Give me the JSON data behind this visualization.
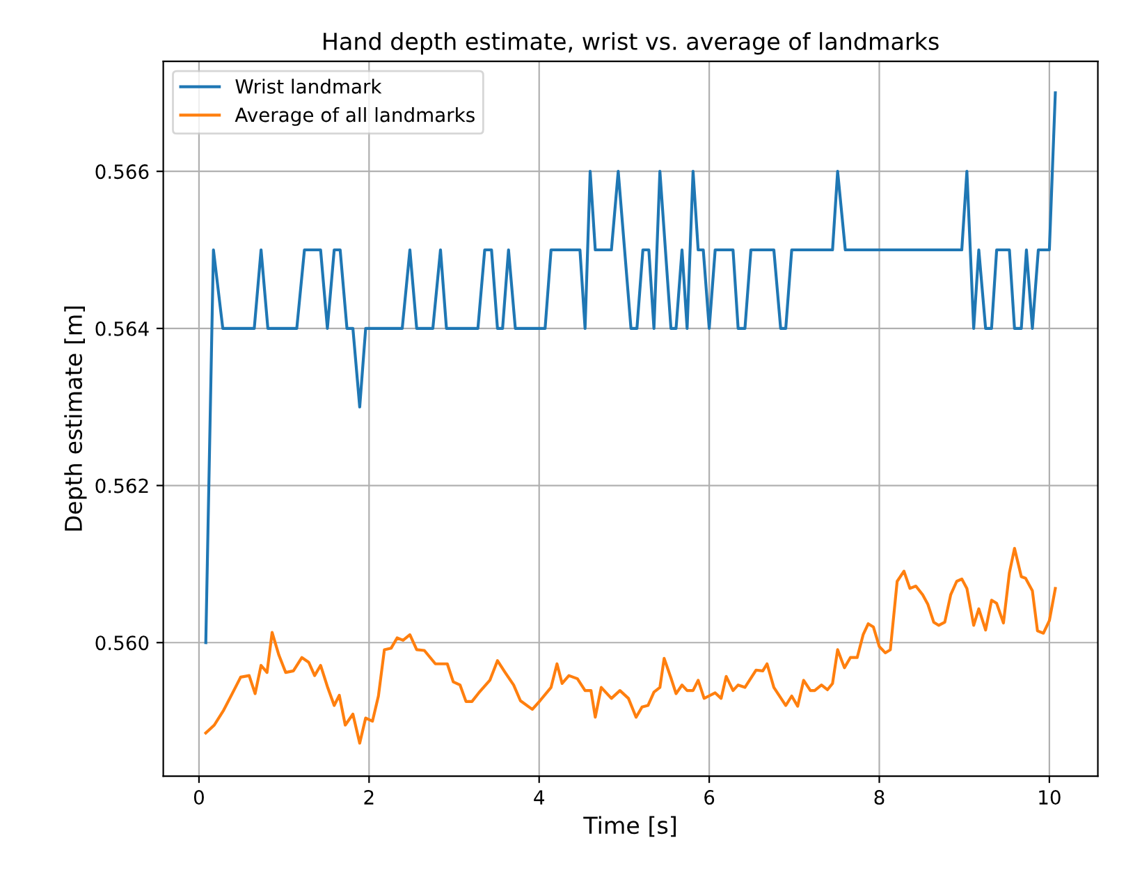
{
  "chart_data": {
    "type": "line",
    "title": "Hand depth estimate, wrist vs. average of landmarks",
    "xlabel": "Time [s]",
    "ylabel": "Depth estimate [m]",
    "xlim": [
      -0.42,
      10.57
    ],
    "ylim": [
      0.5583,
      0.5674
    ],
    "xticks": [
      0,
      2,
      4,
      6,
      8,
      10
    ],
    "yticks": [
      {
        "value": 0.56,
        "label": "0.560"
      },
      {
        "value": 0.562,
        "label": "0.562"
      },
      {
        "value": 0.564,
        "label": "0.564"
      },
      {
        "value": 0.566,
        "label": "0.566"
      }
    ],
    "grid": true,
    "legend": "top left",
    "line_style": "solid",
    "marker": "none",
    "series": [
      {
        "name": "Wrist landmark",
        "color": "#1f77b4",
        "x": [
          0.08,
          0.17,
          0.28,
          0.65,
          0.73,
          0.81,
          1.15,
          1.24,
          1.43,
          1.51,
          1.59,
          1.66,
          1.74,
          1.81,
          1.89,
          1.96,
          2.39,
          2.48,
          2.56,
          2.75,
          2.84,
          2.91,
          3.28,
          3.36,
          3.44,
          3.51,
          3.57,
          3.64,
          3.72,
          4.07,
          4.14,
          4.48,
          4.54,
          4.6,
          4.66,
          4.85,
          4.93,
          5.08,
          5.15,
          5.22,
          5.29,
          5.35,
          5.42,
          5.55,
          5.61,
          5.68,
          5.74,
          5.81,
          5.87,
          5.93,
          6.0,
          6.07,
          6.28,
          6.34,
          6.42,
          6.49,
          6.76,
          6.84,
          6.9,
          6.97,
          7.45,
          7.51,
          7.6,
          8.97,
          9.03,
          9.11,
          9.17,
          9.25,
          9.32,
          9.38,
          9.53,
          9.59,
          9.67,
          9.73,
          9.8,
          9.87,
          10.0,
          10.07
        ],
        "values": [
          0.56,
          0.565,
          0.564,
          0.564,
          0.565,
          0.564,
          0.564,
          0.565,
          0.565,
          0.564,
          0.565,
          0.565,
          0.564,
          0.564,
          0.563,
          0.564,
          0.564,
          0.565,
          0.564,
          0.564,
          0.565,
          0.564,
          0.564,
          0.565,
          0.565,
          0.564,
          0.564,
          0.565,
          0.564,
          0.564,
          0.565,
          0.565,
          0.564,
          0.566,
          0.565,
          0.565,
          0.566,
          0.564,
          0.564,
          0.565,
          0.565,
          0.564,
          0.566,
          0.564,
          0.564,
          0.565,
          0.564,
          0.566,
          0.565,
          0.565,
          0.564,
          0.565,
          0.565,
          0.564,
          0.564,
          0.565,
          0.565,
          0.564,
          0.564,
          0.565,
          0.565,
          0.566,
          0.565,
          0.565,
          0.566,
          0.564,
          0.565,
          0.564,
          0.564,
          0.565,
          0.565,
          0.564,
          0.564,
          0.565,
          0.564,
          0.565,
          0.565,
          0.567
        ]
      },
      {
        "name": "Average of all landmarks",
        "color": "#ff7f0e",
        "x": [
          0.08,
          0.18,
          0.29,
          0.4,
          0.49,
          0.59,
          0.66,
          0.73,
          0.8,
          0.86,
          0.94,
          1.02,
          1.11,
          1.21,
          1.29,
          1.36,
          1.43,
          1.51,
          1.59,
          1.65,
          1.72,
          1.81,
          1.89,
          1.96,
          2.04,
          2.11,
          2.18,
          2.26,
          2.33,
          2.4,
          2.48,
          2.56,
          2.65,
          2.78,
          2.92,
          2.99,
          3.07,
          3.14,
          3.21,
          3.29,
          3.42,
          3.51,
          3.6,
          3.7,
          3.78,
          3.92,
          4.01,
          4.14,
          4.21,
          4.27,
          4.35,
          4.45,
          4.54,
          4.61,
          4.66,
          4.73,
          4.85,
          4.95,
          5.05,
          5.14,
          5.21,
          5.28,
          5.35,
          5.42,
          5.47,
          5.55,
          5.61,
          5.68,
          5.74,
          5.81,
          5.87,
          5.94,
          6.07,
          6.14,
          6.2,
          6.28,
          6.34,
          6.42,
          6.55,
          6.63,
          6.68,
          6.76,
          6.9,
          6.97,
          7.04,
          7.11,
          7.19,
          7.24,
          7.32,
          7.39,
          7.45,
          7.51,
          7.59,
          7.66,
          7.74,
          7.81,
          7.87,
          7.93,
          8.0,
          8.07,
          8.13,
          8.21,
          8.29,
          8.36,
          8.43,
          8.51,
          8.57,
          8.64,
          8.7,
          8.77,
          8.84,
          8.91,
          8.97,
          9.03,
          9.11,
          9.17,
          9.25,
          9.32,
          9.38,
          9.46,
          9.53,
          9.59,
          9.67,
          9.72,
          9.8,
          9.86,
          9.93,
          10.0,
          10.07
        ],
        "values": [
          0.55885,
          0.55895,
          0.55914,
          0.55937,
          0.55956,
          0.55958,
          0.55935,
          0.55971,
          0.55962,
          0.56013,
          0.55984,
          0.55962,
          0.55964,
          0.55981,
          0.55975,
          0.55958,
          0.55971,
          0.55944,
          0.5592,
          0.55933,
          0.55895,
          0.55909,
          0.55872,
          0.55904,
          0.559,
          0.55932,
          0.55991,
          0.55993,
          0.56006,
          0.56003,
          0.5601,
          0.55991,
          0.5599,
          0.55973,
          0.55973,
          0.5595,
          0.55946,
          0.55925,
          0.55925,
          0.55936,
          0.55952,
          0.55977,
          0.55962,
          0.55946,
          0.55926,
          0.55915,
          0.55926,
          0.55943,
          0.55973,
          0.55948,
          0.55958,
          0.55954,
          0.55939,
          0.55939,
          0.55905,
          0.55943,
          0.55929,
          0.55939,
          0.55929,
          0.55905,
          0.55918,
          0.5592,
          0.55937,
          0.55943,
          0.5598,
          0.55955,
          0.55935,
          0.55946,
          0.55939,
          0.55939,
          0.55952,
          0.55929,
          0.55936,
          0.55929,
          0.55957,
          0.55939,
          0.55946,
          0.55943,
          0.55965,
          0.55964,
          0.55973,
          0.55943,
          0.5592,
          0.55932,
          0.55919,
          0.55952,
          0.55939,
          0.55939,
          0.55946,
          0.5594,
          0.55948,
          0.55991,
          0.55968,
          0.55981,
          0.55981,
          0.5601,
          0.56024,
          0.5602,
          0.55995,
          0.55987,
          0.55991,
          0.56078,
          0.56091,
          0.56069,
          0.56072,
          0.56061,
          0.56049,
          0.56026,
          0.56022,
          0.56026,
          0.56061,
          0.56078,
          0.56081,
          0.56069,
          0.56022,
          0.56043,
          0.56016,
          0.56054,
          0.5605,
          0.56025,
          0.56089,
          0.5612,
          0.56084,
          0.56082,
          0.56066,
          0.56015,
          0.56012,
          0.56028,
          0.56069
        ]
      }
    ]
  }
}
